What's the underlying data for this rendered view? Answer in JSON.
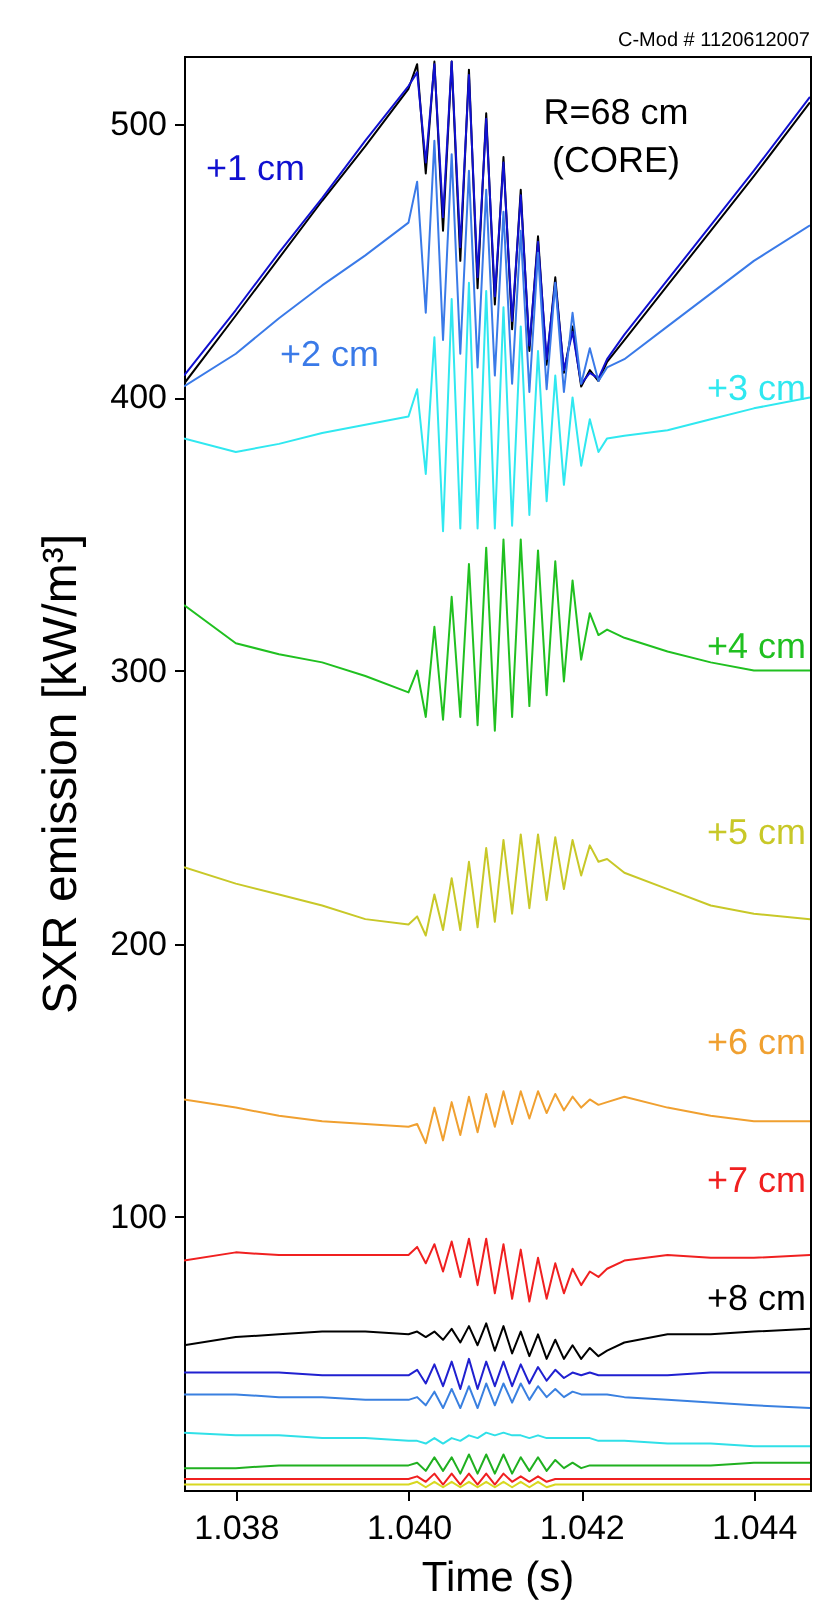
{
  "chart_data": {
    "type": "line",
    "xlabel": "Time (s)",
    "ylabel": "SXR emission [kW/m³]",
    "annotations": [
      "C-Mod # 1120612007"
    ],
    "x": [
      1.0374,
      1.038,
      1.0385,
      1.039,
      1.0395,
      1.04,
      1.0401,
      1.0402,
      1.0403,
      1.0404,
      1.0405,
      1.0406,
      1.0407,
      1.0408,
      1.0409,
      1.041,
      1.0411,
      1.0412,
      1.0413,
      1.0414,
      1.0415,
      1.0416,
      1.0417,
      1.0418,
      1.0419,
      1.042,
      1.0421,
      1.0422,
      1.0423,
      1.0425,
      1.043,
      1.0435,
      1.044,
      1.04465
    ],
    "xlim": [
      1.0374,
      1.04465
    ],
    "ylim": [
      0,
      525
    ],
    "xticks": [
      {
        "value": 1.038,
        "label": "1.038"
      },
      {
        "value": 1.04,
        "label": "1.040"
      },
      {
        "value": 1.042,
        "label": "1.042"
      },
      {
        "value": 1.044,
        "label": "1.044"
      }
    ],
    "yticks": [
      100,
      200,
      300,
      400,
      500
    ],
    "grid": false,
    "legend": false,
    "series": [
      {
        "name": "R=68 cm\n(CORE)",
        "color": "#000000",
        "values": [
          405,
          430,
          451,
          472,
          492,
          513,
          522,
          482,
          523,
          461,
          523,
          450,
          520,
          440,
          504,
          434,
          488,
          425,
          476,
          417,
          459,
          412,
          444,
          409,
          426,
          404,
          410,
          406,
          413,
          421,
          441,
          461,
          481,
          508
        ]
      },
      {
        "name": "+1 cm",
        "color": "#1010d0",
        "values": [
          408,
          432,
          453,
          473,
          494,
          514,
          519,
          486,
          522,
          466,
          523,
          455,
          518,
          444,
          502,
          437,
          486,
          428,
          474,
          419,
          457,
          414,
          442,
          410,
          424,
          405,
          409,
          407,
          414,
          423,
          443,
          463,
          483,
          510
        ]
      },
      {
        "name": "+2 cm",
        "color": "#3a7ae8",
        "values": [
          404,
          416,
          429,
          441,
          452,
          464,
          479,
          431,
          494,
          421,
          489,
          416,
          483,
          411,
          476,
          408,
          468,
          405,
          461,
          402,
          453,
          403,
          442,
          402,
          431,
          405,
          418,
          406,
          411,
          414,
          426,
          438,
          450,
          463
        ]
      },
      {
        "name": "+3 cm",
        "color": "#30e8f0",
        "values": [
          385,
          380,
          383,
          387,
          390,
          393,
          403,
          372,
          422,
          351,
          436,
          352,
          442,
          352,
          439,
          352,
          433,
          353,
          426,
          357,
          417,
          362,
          408,
          368,
          400,
          375,
          392,
          380,
          385,
          386,
          388,
          392,
          396,
          400
        ]
      },
      {
        "name": "+4 cm",
        "color": "#20c020",
        "values": [
          324,
          310,
          306,
          303,
          298,
          292,
          300,
          283,
          316,
          282,
          327,
          283,
          339,
          280,
          345,
          278,
          348,
          283,
          348,
          287,
          344,
          291,
          340,
          296,
          333,
          304,
          321,
          313,
          315,
          312,
          307,
          303,
          300,
          300
        ]
      },
      {
        "name": "+5 cm",
        "color": "#c8c828",
        "values": [
          228,
          222,
          218,
          214,
          209,
          207,
          210,
          203,
          218,
          205,
          224,
          205,
          230,
          206,
          235,
          208,
          238,
          211,
          240,
          213,
          240,
          216,
          239,
          220,
          238,
          225,
          236,
          230,
          231,
          226,
          220,
          214,
          211,
          209
        ]
      },
      {
        "name": "+6 cm",
        "color": "#f0a030",
        "values": [
          143,
          140,
          137,
          135,
          134,
          133,
          134,
          127,
          140,
          128,
          142,
          130,
          144,
          131,
          145,
          133,
          146,
          134,
          146,
          136,
          146,
          138,
          145,
          139,
          144,
          140,
          143,
          141,
          142,
          144,
          140,
          137,
          135,
          135
        ]
      },
      {
        "name": "+7 cm",
        "color": "#f02020",
        "values": [
          84,
          87,
          86,
          86,
          86,
          86,
          89,
          83,
          90,
          80,
          91,
          78,
          92,
          75,
          92,
          72,
          90,
          70,
          88,
          69,
          85,
          70,
          83,
          72,
          81,
          75,
          80,
          78,
          81,
          84,
          86,
          85,
          85,
          86
        ]
      },
      {
        "name": "+8 cm",
        "color": "#000000",
        "values": [
          53,
          56,
          57,
          58,
          58,
          57,
          58,
          56,
          58,
          55,
          59,
          54,
          60,
          53,
          61,
          51,
          60,
          50,
          58,
          49,
          57,
          48,
          55,
          48,
          53,
          48,
          52,
          49,
          51,
          54,
          57,
          57,
          58,
          59
        ]
      },
      {
        "color": "#2020d0",
        "values": [
          43,
          43,
          43,
          42,
          42,
          42,
          44,
          39,
          46,
          38,
          47,
          37,
          48,
          37,
          47,
          38,
          47,
          38,
          46,
          39,
          45,
          40,
          44,
          41,
          43,
          42,
          43,
          42,
          42,
          42,
          42,
          43,
          43,
          43
        ]
      },
      {
        "color": "#3a80e0",
        "values": [
          35,
          35,
          34,
          34,
          33,
          33,
          34,
          31,
          36,
          30,
          37,
          30,
          38,
          30,
          39,
          31,
          39,
          32,
          39,
          33,
          38,
          34,
          37,
          34,
          36,
          35,
          35,
          35,
          35,
          34,
          33,
          32,
          31,
          30
        ]
      },
      {
        "color": "#30e0e8",
        "values": [
          21,
          20,
          20,
          19,
          19,
          18,
          18,
          17,
          19,
          17,
          19,
          18,
          20,
          19,
          21,
          20,
          21,
          20,
          20,
          19,
          20,
          19,
          19,
          19,
          19,
          19,
          19,
          18,
          18,
          18,
          17,
          17,
          16,
          16
        ]
      },
      {
        "color": "#20b020",
        "values": [
          8,
          8,
          9,
          9,
          9,
          9,
          10,
          7,
          12,
          7,
          12,
          6,
          13,
          6,
          13,
          6,
          13,
          6,
          12,
          7,
          12,
          7,
          11,
          8,
          10,
          8,
          9,
          9,
          9,
          9,
          9,
          9,
          10,
          10
        ]
      },
      {
        "color": "#f02020",
        "values": [
          4,
          4,
          4,
          4,
          4,
          4,
          5,
          3,
          6,
          2,
          6,
          2,
          6,
          2,
          6,
          2,
          6,
          3,
          5,
          3,
          5,
          3,
          4,
          4,
          4,
          4,
          4,
          4,
          4,
          4,
          4,
          4,
          4,
          4
        ]
      },
      {
        "color": "#d8d820",
        "values": [
          2,
          2,
          2,
          2,
          2,
          2,
          3,
          1,
          3,
          1,
          3,
          1,
          3,
          1,
          3,
          1,
          3,
          1,
          3,
          1,
          3,
          1,
          2,
          2,
          2,
          2,
          2,
          2,
          2,
          2,
          2,
          2,
          2,
          2
        ]
      }
    ]
  }
}
